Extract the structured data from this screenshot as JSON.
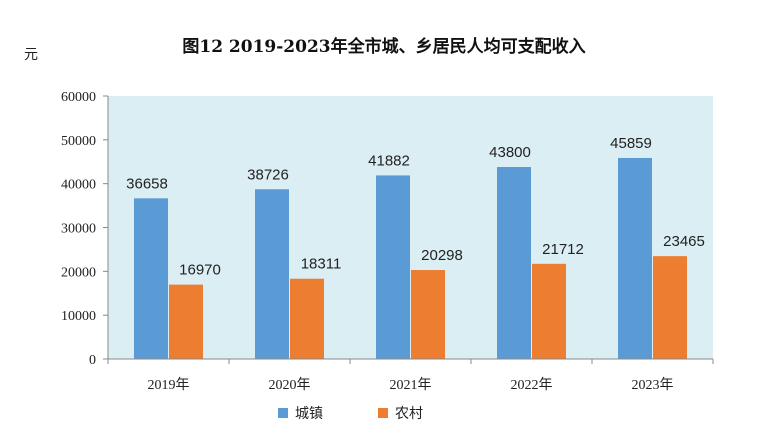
{
  "chart_data": {
    "type": "bar",
    "title": "图12  2019-2023年全市城、乡居民人均可支配收入",
    "unit": "元",
    "categories": [
      "2019年",
      "2020年",
      "2021年",
      "2022年",
      "2023年"
    ],
    "series": [
      {
        "name": "城镇",
        "color": "#5b9bd5",
        "values": [
          36658,
          38726,
          41882,
          43800,
          45859
        ]
      },
      {
        "name": "农村",
        "color": "#ed7d31",
        "values": [
          16970,
          18311,
          20298,
          21712,
          23465
        ]
      }
    ],
    "ylim": [
      0,
      60000
    ],
    "yticks": [
      0,
      10000,
      20000,
      30000,
      40000,
      50000,
      60000
    ],
    "grid": false,
    "plot_background": "#dbeef4",
    "legend": "bottom"
  }
}
